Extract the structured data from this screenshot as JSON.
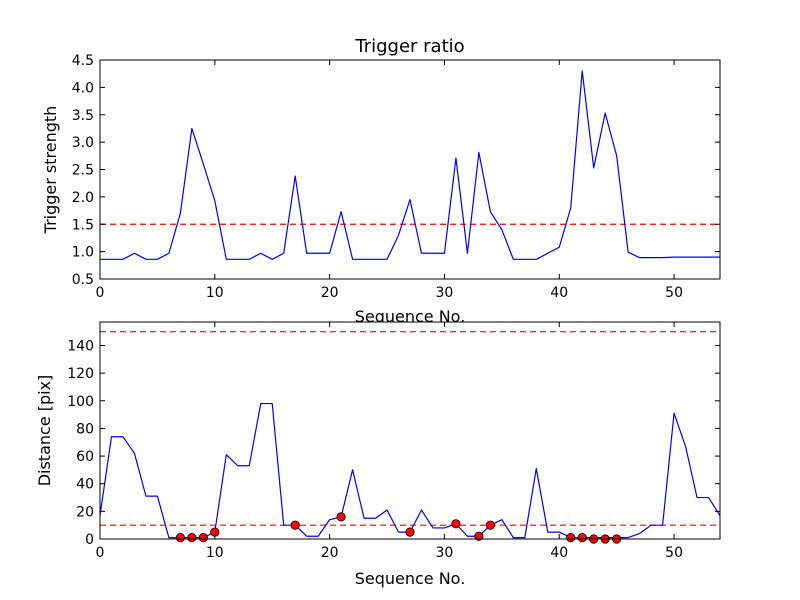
{
  "chart_data": [
    {
      "type": "line",
      "title": "Trigger ratio",
      "xlabel": "Sequence No.",
      "ylabel": "Trigger strength",
      "xlim": [
        0,
        54
      ],
      "ylim": [
        0.5,
        4.5
      ],
      "xticks": [
        0,
        10,
        20,
        30,
        40,
        50
      ],
      "xtick_labels": [
        "0",
        "10",
        "20",
        "30",
        "40",
        "50"
      ],
      "yticks": [
        0.5,
        1.0,
        1.5,
        2.0,
        2.5,
        3.0,
        3.5,
        4.0,
        4.5
      ],
      "ytick_labels": [
        "0.5",
        "1.0",
        "1.5",
        "2.0",
        "2.5",
        "3.0",
        "3.5",
        "4.0",
        "4.5"
      ],
      "grid": false,
      "series": [
        {
          "color": "#0000ff",
          "style": "solid",
          "x": [
            0,
            1,
            2,
            3,
            4,
            5,
            6,
            7,
            8,
            9,
            10,
            11,
            12,
            13,
            14,
            15,
            16,
            17,
            18,
            19,
            20,
            21,
            22,
            23,
            24,
            25,
            26,
            27,
            28,
            29,
            30,
            31,
            32,
            33,
            34,
            35,
            36,
            37,
            38,
            39,
            40,
            41,
            42,
            43,
            44,
            45,
            46,
            47,
            48,
            49,
            50,
            51,
            52,
            53,
            54
          ],
          "values": [
            0.86,
            0.86,
            0.86,
            0.97,
            0.86,
            0.86,
            0.97,
            1.7,
            3.25,
            2.6,
            1.93,
            0.86,
            0.86,
            0.86,
            0.97,
            0.86,
            0.97,
            2.38,
            0.97,
            0.97,
            0.97,
            1.73,
            0.86,
            0.86,
            0.86,
            0.86,
            1.3,
            1.95,
            0.97,
            0.97,
            0.97,
            2.71,
            0.97,
            2.81,
            1.73,
            1.4,
            0.86,
            0.86,
            0.86,
            0.97,
            1.08,
            1.8,
            4.3,
            2.53,
            3.53,
            2.75,
            0.99,
            0.89,
            0.89,
            0.89,
            0.9,
            0.9,
            0.9,
            0.9,
            0.9
          ]
        }
      ],
      "hlines": [
        {
          "y": 1.5,
          "color": "#ff0000",
          "style": "dashed"
        }
      ]
    },
    {
      "type": "line",
      "title": "",
      "xlabel": "Sequence No.",
      "ylabel": "Distance [pix]",
      "xlim": [
        0,
        54
      ],
      "ylim": [
        0,
        157
      ],
      "xticks": [
        0,
        10,
        20,
        30,
        40,
        50
      ],
      "xtick_labels": [
        "0",
        "10",
        "20",
        "30",
        "40",
        "50"
      ],
      "yticks": [
        0,
        20,
        40,
        60,
        80,
        100,
        120,
        140
      ],
      "ytick_labels": [
        "0",
        "20",
        "40",
        "60",
        "80",
        "100",
        "120",
        "140"
      ],
      "grid": false,
      "series": [
        {
          "color": "#0000ff",
          "style": "solid",
          "x": [
            0,
            1,
            2,
            3,
            4,
            5,
            6,
            7,
            8,
            9,
            10,
            11,
            12,
            13,
            14,
            15,
            16,
            17,
            18,
            19,
            20,
            21,
            22,
            23,
            24,
            25,
            26,
            27,
            28,
            29,
            30,
            31,
            32,
            33,
            34,
            35,
            36,
            37,
            38,
            39,
            40,
            41,
            42,
            43,
            44,
            45,
            46,
            47,
            48,
            49,
            50,
            51,
            52,
            53,
            54
          ],
          "values": [
            17,
            74,
            74,
            62,
            31,
            31,
            1,
            1,
            1,
            1,
            5,
            61,
            53,
            53,
            98,
            98,
            10,
            10,
            2,
            2,
            14,
            16,
            50,
            15,
            15,
            21,
            5,
            5,
            21,
            8,
            8,
            11,
            2,
            2,
            10,
            14,
            1,
            1,
            51,
            5,
            5,
            1,
            1,
            1,
            1,
            1,
            1,
            4,
            10,
            10,
            91,
            67,
            30,
            30,
            17
          ]
        },
        {
          "color": "#ff0000",
          "style": "markers",
          "x": [
            7,
            8,
            9,
            10,
            17,
            21,
            27,
            31,
            33,
            34,
            41,
            42,
            43,
            44,
            45
          ],
          "values": [
            1,
            1,
            1,
            5,
            10,
            16,
            5,
            11,
            2,
            10,
            1,
            1,
            0,
            0,
            0
          ]
        }
      ],
      "hlines": [
        {
          "y": 10,
          "color": "#ff0000",
          "style": "dashed"
        },
        {
          "y": 150,
          "color": "#ff0000",
          "style": "dashed"
        }
      ]
    }
  ]
}
